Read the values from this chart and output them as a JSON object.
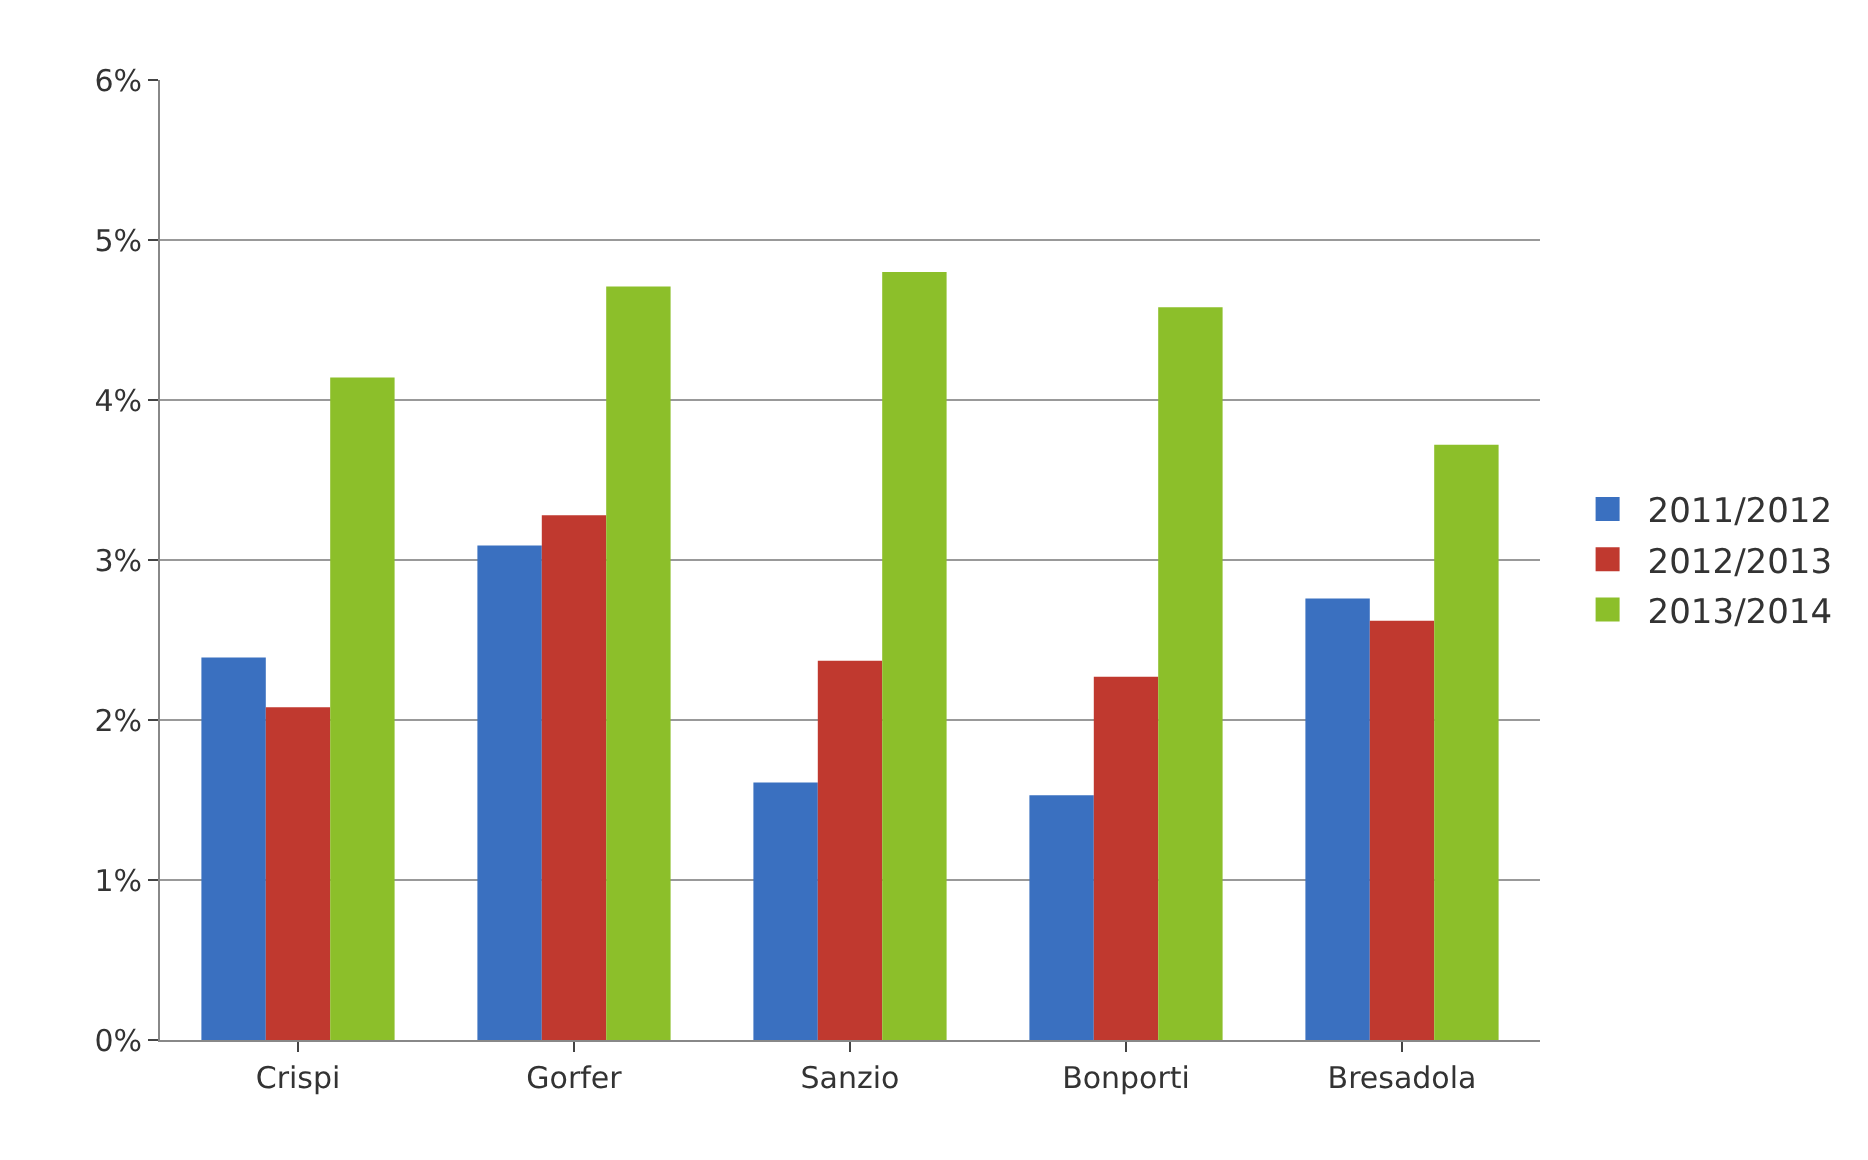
{
  "chart_data": {
    "type": "bar",
    "categories": [
      "Crispi",
      "Gorfer",
      "Sanzio",
      "Bonporti",
      "Bresadola"
    ],
    "series": [
      {
        "name": "2011/2012",
        "color": "#3a70c0",
        "values": [
          2.39,
          3.09,
          1.61,
          1.53,
          2.76
        ]
      },
      {
        "name": "2012/2013",
        "color": "#c0392f",
        "values": [
          2.08,
          3.28,
          2.37,
          2.27,
          2.62
        ]
      },
      {
        "name": "2013/2014",
        "color": "#8cbf2a",
        "values": [
          4.14,
          4.71,
          4.8,
          4.58,
          3.72
        ]
      }
    ],
    "ylim": [
      0,
      6
    ],
    "yticks": [
      {
        "value": 0,
        "label": "0%"
      },
      {
        "value": 1,
        "label": "1%"
      },
      {
        "value": 2,
        "label": "2%"
      },
      {
        "value": 3,
        "label": "3%"
      },
      {
        "value": 4,
        "label": "4%"
      },
      {
        "value": 5,
        "label": "5%"
      },
      {
        "value": 6,
        "label": "6%"
      }
    ],
    "grid": "y",
    "legend": "right"
  }
}
